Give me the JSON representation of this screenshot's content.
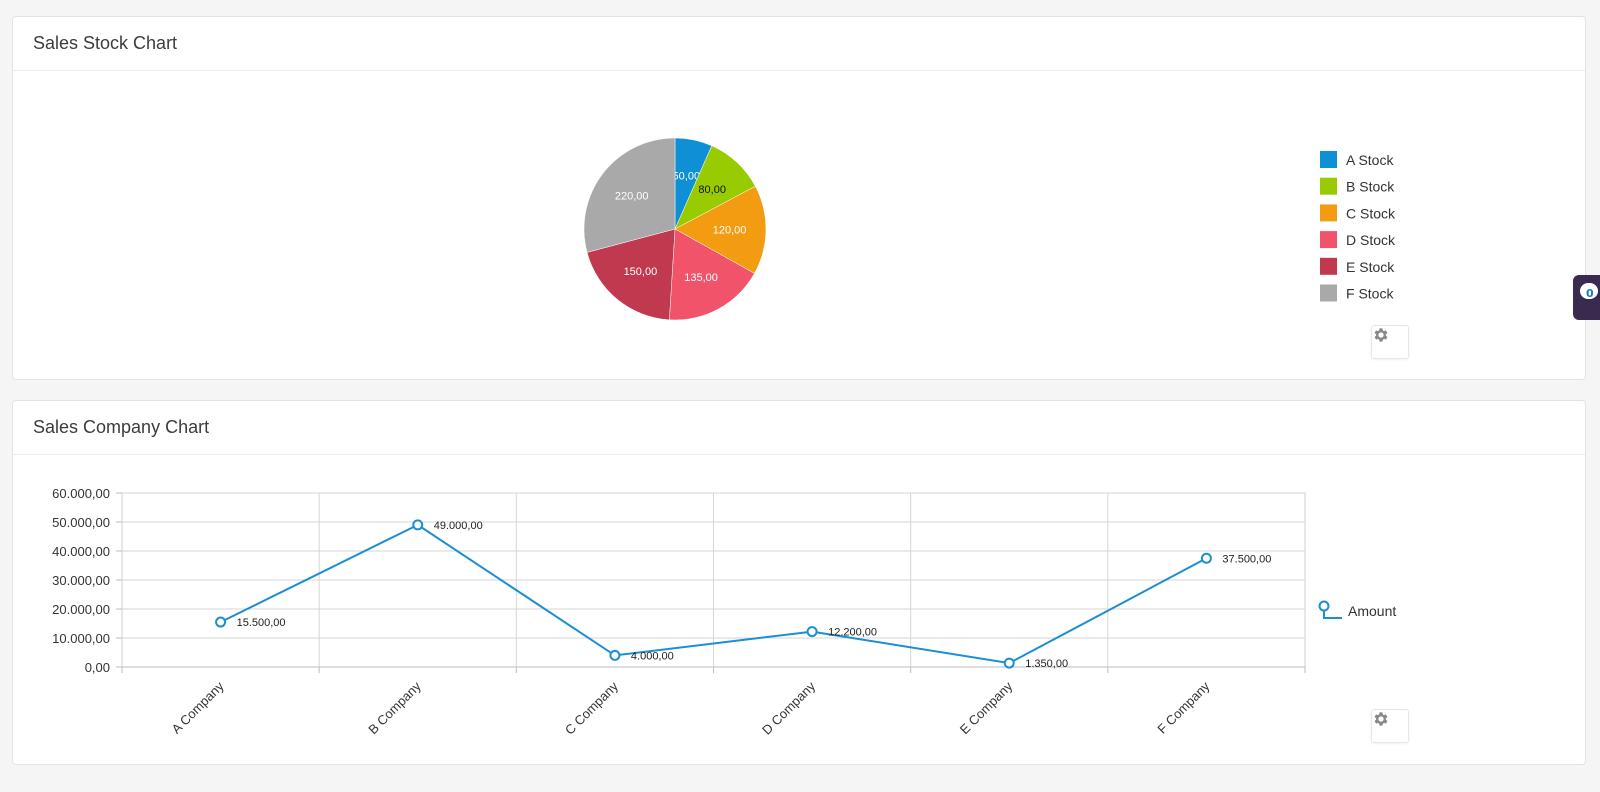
{
  "panels": {
    "stock": {
      "title": "Sales Stock Chart"
    },
    "company": {
      "title": "Sales Company Chart"
    }
  },
  "chat_widget": {
    "count": "0",
    "icon": "chat-bubble-icon"
  },
  "settings_icon": "gear-icon",
  "chart_data": [
    {
      "type": "pie",
      "categories": [
        "A Stock",
        "B Stock",
        "C Stock",
        "D Stock",
        "E Stock",
        "F Stock"
      ],
      "values": [
        50,
        80,
        120,
        135,
        150,
        220
      ],
      "value_labels": [
        "50,00",
        "80,00",
        "120,00",
        "135,00",
        "150,00",
        "220,00"
      ],
      "colors": [
        "#0f8fd6",
        "#99cc00",
        "#f39c12",
        "#f1546a",
        "#c0394f",
        "#a9a9a9"
      ],
      "label_colors": [
        "#ffffff",
        "#111111",
        "#ffffff",
        "#ffffff",
        "#ffffff",
        "#ffffff"
      ],
      "legend_position": "right"
    },
    {
      "type": "line",
      "categories": [
        "A Company",
        "B Company",
        "C Company",
        "D Company",
        "E Company",
        "F Company"
      ],
      "series": [
        {
          "name": "Amount",
          "values": [
            15500,
            49000,
            4000,
            12200,
            1350,
            37500
          ],
          "value_labels": [
            "15.500,00",
            "49.000,00",
            "4.000,00",
            "12.200,00",
            "1.350,00",
            "37.500,00"
          ],
          "color": "#1a8fd1"
        }
      ],
      "ylim": [
        0,
        60000
      ],
      "yticks": [
        0,
        10000,
        20000,
        30000,
        40000,
        50000,
        60000
      ],
      "ytick_labels": [
        "0,00",
        "10.000,00",
        "20.000,00",
        "30.000,00",
        "40.000,00",
        "50.000,00",
        "60.000,00"
      ],
      "grid": true,
      "legend_position": "right"
    }
  ]
}
